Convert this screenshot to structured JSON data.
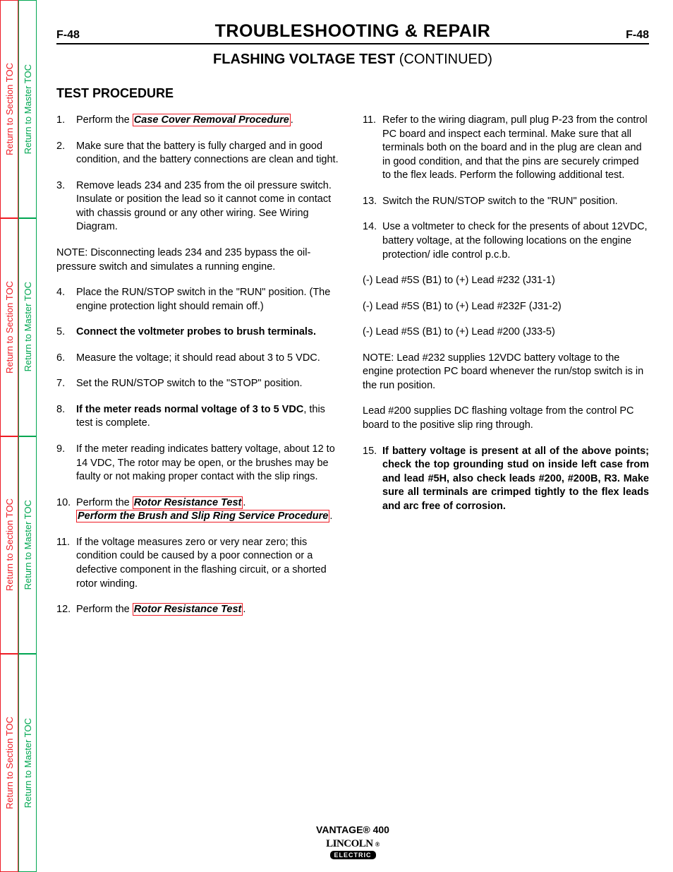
{
  "side_tabs": {
    "section": "Return to Section TOC",
    "master": "Return to Master TOC",
    "colors": {
      "red": "#ee1c25",
      "green": "#00a651"
    }
  },
  "header": {
    "page_label_left": "F-48",
    "page_label_right": "F-48",
    "title": "TROUBLESHOOTING & REPAIR",
    "subtitle_bold": "FLASHING VOLTAGE TEST",
    "subtitle_rest": " (CONTINUED)"
  },
  "section_heading": "TEST PROCEDURE",
  "left_steps": [
    {
      "n": "1.",
      "pre": "Perform the ",
      "link": "Case Cover Removal Procedure",
      "post": "."
    },
    {
      "n": "2.",
      "text": "Make sure that the battery is fully charged and in good condition, and the battery connections are clean and tight."
    },
    {
      "n": "3.",
      "text": "Remove leads 234 and 235 from the oil pressure switch.  Insulate or position the lead so it cannot come in contact with chassis ground or any other wiring.  See Wiring Diagram."
    }
  ],
  "left_note1": "NOTE: Disconnecting leads 234 and 235 bypass the oil-pressure switch and simulates a running engine.",
  "left_steps2": [
    {
      "n": "4.",
      "text": "Place the RUN/STOP switch in the \"RUN\" position.  (The engine protection light should remain off.)"
    },
    {
      "n": "5.",
      "bold": "Connect the voltmeter probes to brush terminals."
    },
    {
      "n": "6.",
      "text": "Measure the voltage; it should read about 3 to 5 VDC."
    },
    {
      "n": "7.",
      "text": "Set the RUN/STOP switch to the \"STOP\" position."
    },
    {
      "n": "8.",
      "bold_pre": "If the meter reads normal voltage of 3 to 5 VDC",
      "post": ", this test is complete."
    },
    {
      "n": "9.",
      "text": "If the meter reading indicates battery voltage, about 12 to 14 VDC, The rotor may be open, or the brushes may be faulty or not making proper contact with the slip rings."
    },
    {
      "n": "10.",
      "pre": "Perform the ",
      "link": "Rotor Resistance Test",
      "post": ".",
      "link2_pre": "",
      "link2": "Perform the Brush and Slip Ring Service Procedure",
      "link2_post": "."
    },
    {
      "n": "11.",
      "text": "If the voltage measures zero or very near zero; this condition could be caused by a poor connection or a defective component in the flashing circuit, or a shorted rotor winding."
    },
    {
      "n": "12.",
      "pre": "Perform the ",
      "link": "Rotor Resistance Test",
      "post": "."
    }
  ],
  "right_steps": [
    {
      "n": "11.",
      "text": "Refer to the wiring diagram, pull plug P-23 from the control PC board and inspect each terminal.  Make sure that all terminals both on the board and in the plug are clean and in good condition, and that the pins are securely crimped to the flex leads.  Perform the following additional test."
    },
    {
      "n": "13.",
      "text": "Switch the RUN/STOP switch to the \"RUN\" position."
    },
    {
      "n": "14.",
      "text": "Use a voltmeter to check for the presents of about 12VDC, battery voltage, at the following locations on the engine protection/ idle control p.c.b."
    }
  ],
  "readings": [
    "(-) Lead #5S (B1) to (+) Lead #232 (J31-1)",
    "(-) Lead #5S (B1) to (+) Lead #232F (J31-2)",
    "(-) Lead #5S (B1) to (+) Lead #200 (J33-5)"
  ],
  "right_note": "NOTE: Lead #232 supplies 12VDC battery voltage to the engine protection PC board whenever the run/stop switch is in the run position.",
  "right_para": "Lead #200 supplies DC flashing voltage from the control PC board to the positive slip ring through.",
  "right_step15": {
    "n": "15.",
    "bold": "If battery voltage is present at all of the above points; check the top grounding stud on inside left case from and lead #5H, also check leads #200, #200B, R3.  Make sure all terminals are crimped tightly to the flex leads and arc free of corrosion."
  },
  "footer": {
    "model": "VANTAGE® 400",
    "logo_top": "LINCOLN",
    "logo_bot": "ELECTRIC"
  }
}
